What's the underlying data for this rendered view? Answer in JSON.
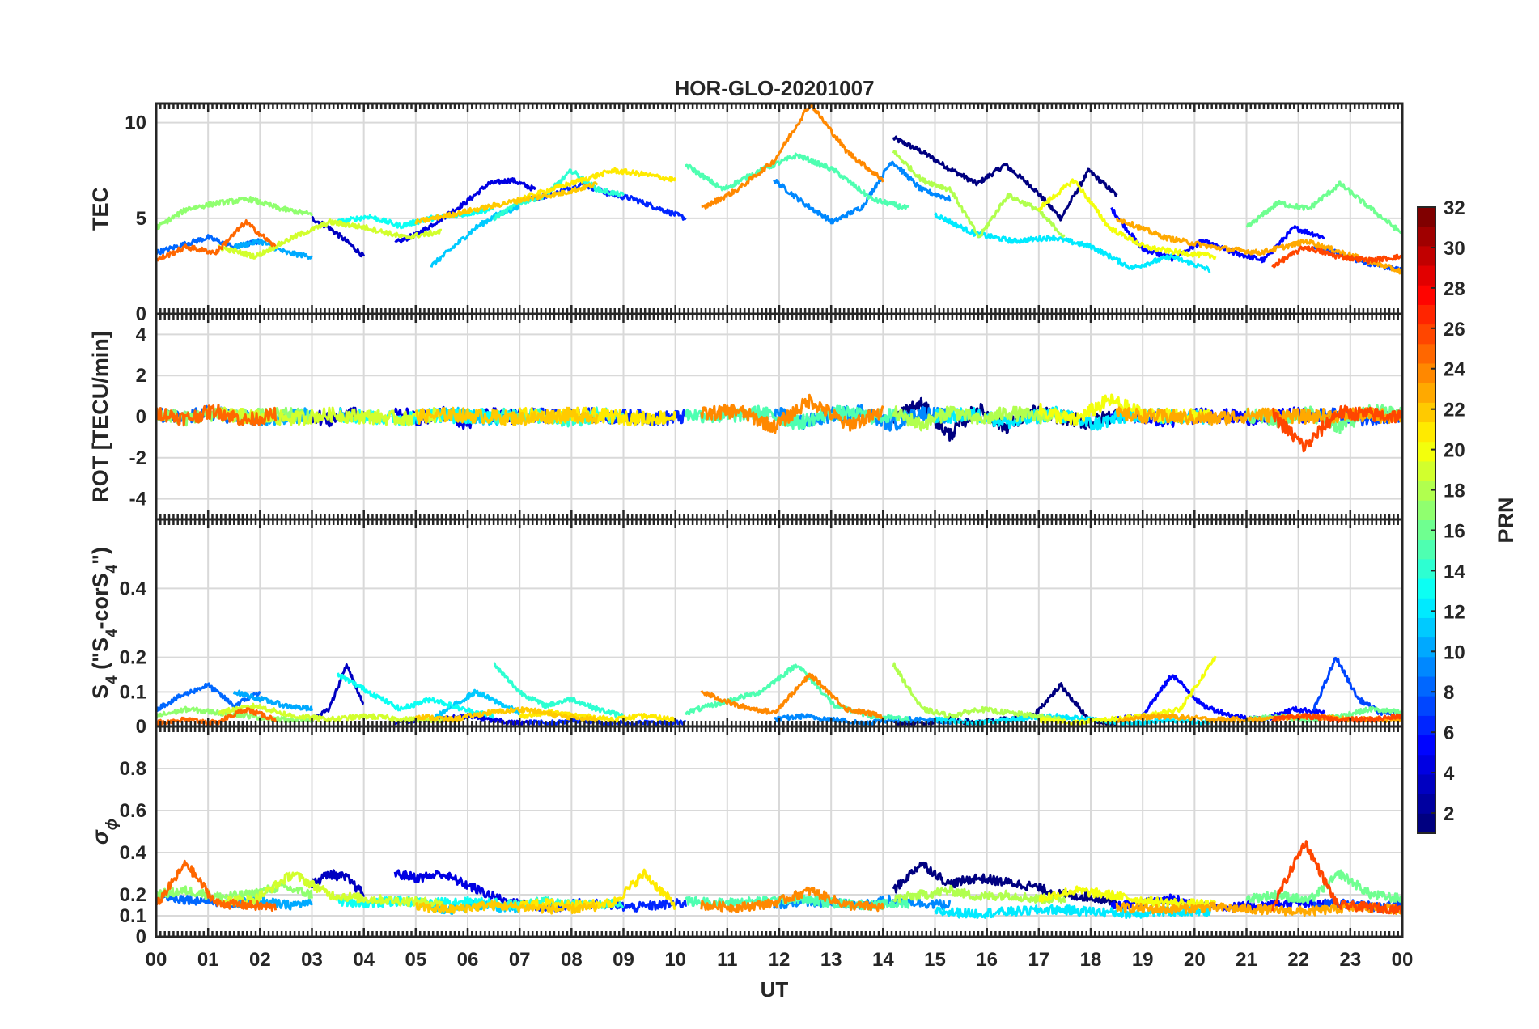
{
  "chart_data": {
    "type": "line",
    "title": "HOR-GLO-20201007",
    "xlabel": "UT",
    "x_ticks": [
      "00",
      "01",
      "02",
      "03",
      "04",
      "05",
      "06",
      "07",
      "08",
      "09",
      "10",
      "11",
      "12",
      "13",
      "14",
      "15",
      "16",
      "17",
      "18",
      "19",
      "20",
      "21",
      "22",
      "23",
      "00"
    ],
    "xlim": [
      0,
      24
    ],
    "grid": true,
    "panels": [
      {
        "id": "tec",
        "ylabel": "TEC",
        "ylim": [
          0,
          11
        ],
        "yticks": [
          0,
          5,
          10
        ],
        "baseline": 4.5
      },
      {
        "id": "rot",
        "ylabel": "ROT [TECU/min]",
        "ylim": [
          -5,
          5
        ],
        "yticks": [
          -4,
          -2,
          0,
          2,
          4
        ],
        "baseline": 0
      },
      {
        "id": "s4",
        "ylabel_parts": [
          "S",
          "4",
          " (\"S",
          "4",
          "-corS",
          "4",
          "\")"
        ],
        "ylim": [
          0,
          0.6
        ],
        "yticks": [
          0,
          0.1,
          0.2,
          0.4
        ],
        "baseline": 0.03
      },
      {
        "id": "sigma",
        "ylabel_parts": [
          "σ",
          "ϕ"
        ],
        "ylim": [
          0,
          1
        ],
        "yticks": [
          0,
          0.1,
          0.2,
          0.4,
          0.6,
          0.8
        ],
        "baseline": 0.15
      }
    ],
    "colorbar": {
      "label": "PRN",
      "range": [
        1,
        32
      ],
      "ticks": [
        "2",
        "4",
        "6",
        "8",
        "10",
        "12",
        "14",
        "16",
        "18",
        "20",
        "22",
        "24",
        "26",
        "28",
        "30",
        "32"
      ]
    },
    "series": [
      {
        "prn": 1,
        "start": 14.2,
        "end": 18.5,
        "panel_values": {
          "tec": [
            9.2,
            8.5,
            7.6,
            6.8,
            7.8,
            6.6,
            5.0,
            7.5,
            6.2
          ],
          "rot": [
            0,
            0.6,
            -0.9,
            0.4,
            -0.5,
            0.2,
            0,
            -0.3,
            0.1
          ],
          "s4": [
            0.01,
            0.01,
            0.02,
            0.01,
            0.02,
            0.03,
            0.12,
            0.02,
            0.01
          ],
          "sigma": [
            0.22,
            0.35,
            0.25,
            0.28,
            0.26,
            0.24,
            0.2,
            0.19,
            0.17
          ]
        }
      },
      {
        "prn": 3,
        "start": 3.0,
        "end": 4.0,
        "panel_values": {
          "tec": [
            5.0,
            4.5,
            3.8,
            3.0
          ],
          "rot": [
            0.1,
            -0.2,
            0.2,
            0
          ],
          "s4": [
            0.02,
            0.05,
            0.18,
            0.06
          ],
          "sigma": [
            0.25,
            0.3,
            0.28,
            0.2
          ]
        }
      },
      {
        "prn": 4,
        "start": 4.6,
        "end": 7.3,
        "panel_values": {
          "tec": [
            3.7,
            4.2,
            5.0,
            5.8,
            6.8,
            7.0,
            6.5
          ],
          "rot": [
            0.2,
            -0.1,
            0.2,
            -0.3,
            0.1,
            0,
            0.1
          ],
          "s4": [
            0.01,
            0.02,
            0.02,
            0.03,
            0.02,
            0.01,
            0.01
          ],
          "sigma": [
            0.3,
            0.28,
            0.3,
            0.25,
            0.2,
            0.16,
            0.15
          ]
        }
      },
      {
        "prn": 5,
        "start": 18.4,
        "end": 22.5,
        "panel_values": {
          "tec": [
            5.5,
            3.4,
            2.9,
            3.8,
            3.2,
            2.8,
            4.5,
            4.0
          ],
          "rot": [
            0.1,
            0,
            -0.2,
            0.1,
            0,
            -0.1,
            0.1,
            0
          ],
          "s4": [
            0.02,
            0.03,
            0.15,
            0.06,
            0.03,
            0.02,
            0.05,
            0.04
          ],
          "sigma": [
            0.15,
            0.16,
            0.18,
            0.15,
            0.14,
            0.15,
            0.16,
            0.15
          ]
        }
      },
      {
        "prn": 6,
        "start": 7.2,
        "end": 10.2,
        "panel_values": {
          "tec": [
            6.0,
            6.3,
            6.8,
            6.3,
            6.0,
            5.5,
            5.0
          ],
          "rot": [
            0.1,
            0,
            0.1,
            0,
            0,
            -0.1,
            0
          ],
          "s4": [
            0.01,
            0.01,
            0.02,
            0.01,
            0.01,
            0.01,
            0.01
          ],
          "sigma": [
            0.15,
            0.14,
            0.16,
            0.15,
            0.14,
            0.15,
            0.16
          ]
        }
      },
      {
        "prn": 7,
        "start": 22.3,
        "end": 24.0,
        "panel_values": {
          "tec": [
            3.5,
            3.2,
            2.8,
            2.5,
            2.3
          ],
          "rot": [
            0,
            0.1,
            -0.1,
            0,
            0
          ],
          "s4": [
            0.05,
            0.2,
            0.08,
            0.04,
            0.03
          ],
          "sigma": [
            0.15,
            0.16,
            0.15,
            0.14,
            0.15
          ]
        }
      },
      {
        "prn": 8,
        "start": 0.0,
        "end": 2.0,
        "panel_values": {
          "tec": [
            3.2,
            3.6,
            4.0,
            3.5,
            3.8
          ],
          "rot": [
            0.1,
            -0.1,
            0.2,
            0,
            -0.1
          ],
          "s4": [
            0.05,
            0.09,
            0.12,
            0.06,
            0.1
          ],
          "sigma": [
            0.2,
            0.18,
            0.17,
            0.16,
            0.17
          ]
        }
      },
      {
        "prn": 9,
        "start": 11.9,
        "end": 15.3,
        "panel_values": {
          "tec": [
            7.0,
            5.8,
            4.8,
            5.6,
            8.0,
            6.5,
            6.0
          ],
          "rot": [
            0.2,
            -0.3,
            0.1,
            0.3,
            -0.4,
            0.2,
            0
          ],
          "s4": [
            0.02,
            0.03,
            0.02,
            0.01,
            0.02,
            0.02,
            0.01
          ],
          "sigma": [
            0.15,
            0.17,
            0.16,
            0.15,
            0.18,
            0.16,
            0.15
          ]
        }
      },
      {
        "prn": 10,
        "start": 1.5,
        "end": 3.0,
        "panel_values": {
          "tec": [
            3.5,
            3.8,
            3.2,
            3.0
          ],
          "rot": [
            0.1,
            -0.1,
            0,
            0.1
          ],
          "s4": [
            0.1,
            0.08,
            0.06,
            0.05
          ],
          "sigma": [
            0.16,
            0.17,
            0.15,
            0.16
          ]
        }
      },
      {
        "prn": 11,
        "start": 5.3,
        "end": 7.0,
        "panel_values": {
          "tec": [
            2.5,
            3.5,
            4.5,
            5.2,
            5.6
          ],
          "rot": [
            0,
            0.1,
            0,
            -0.1,
            0
          ],
          "s4": [
            0.02,
            0.06,
            0.1,
            0.07,
            0.04
          ],
          "sigma": [
            0.14,
            0.13,
            0.15,
            0.14,
            0.13
          ]
        }
      },
      {
        "prn": 12,
        "start": 15.0,
        "end": 20.3,
        "panel_values": {
          "tec": [
            5.2,
            4.2,
            3.8,
            4.0,
            3.5,
            2.4,
            3.0,
            2.3
          ],
          "rot": [
            0,
            0.1,
            -0.3,
            0.2,
            -0.4,
            0.1,
            0,
            0
          ],
          "s4": [
            0.02,
            0.01,
            0.02,
            0.03,
            0.02,
            0.01,
            0.02,
            0.01
          ],
          "sigma": [
            0.12,
            0.11,
            0.12,
            0.13,
            0.12,
            0.11,
            0.12,
            0.12
          ]
        }
      },
      {
        "prn": 13,
        "start": 3.5,
        "end": 6.5,
        "panel_values": {
          "tec": [
            4.8,
            5.1,
            4.6,
            5.0,
            5.2,
            5.5
          ],
          "rot": [
            0.1,
            0,
            -0.1,
            0.1,
            0,
            0.1
          ],
          "s4": [
            0.15,
            0.1,
            0.05,
            0.08,
            0.05,
            0.03
          ],
          "sigma": [
            0.17,
            0.16,
            0.17,
            0.16,
            0.17,
            0.16
          ]
        }
      },
      {
        "prn": 14,
        "start": 6.5,
        "end": 9.0,
        "panel_values": {
          "tec": [
            5.0,
            5.8,
            6.2,
            7.5,
            6.5,
            6.2
          ],
          "rot": [
            0,
            0.1,
            0,
            -0.2,
            0.1,
            0
          ],
          "s4": [
            0.18,
            0.1,
            0.06,
            0.08,
            0.05,
            0.03
          ],
          "sigma": [
            0.16,
            0.15,
            0.17,
            0.16,
            0.15,
            0.16
          ]
        }
      },
      {
        "prn": 15,
        "start": 10.2,
        "end": 14.5,
        "panel_values": {
          "tec": [
            7.8,
            6.5,
            7.5,
            8.3,
            7.5,
            6.0,
            5.5
          ],
          "rot": [
            0.1,
            0,
            0.2,
            -0.3,
            0.2,
            0,
            0.1
          ],
          "s4": [
            0.04,
            0.07,
            0.1,
            0.18,
            0.06,
            0.03,
            0.02
          ],
          "sigma": [
            0.17,
            0.16,
            0.17,
            0.18,
            0.16,
            0.15,
            0.16
          ]
        }
      },
      {
        "prn": 16,
        "start": 21.0,
        "end": 24.0,
        "panel_values": {
          "tec": [
            4.5,
            5.8,
            5.5,
            6.8,
            5.5,
            4.2
          ],
          "rot": [
            0.1,
            -0.2,
            0.2,
            -0.5,
            0.3,
            0.1
          ],
          "s4": [
            0.02,
            0.03,
            0.02,
            0.03,
            0.05,
            0.04
          ],
          "sigma": [
            0.18,
            0.2,
            0.17,
            0.3,
            0.2,
            0.18
          ]
        }
      },
      {
        "prn": 17,
        "start": 0.0,
        "end": 3.0,
        "panel_values": {
          "tec": [
            4.5,
            5.5,
            5.8,
            6.0,
            5.5,
            5.2
          ],
          "rot": [
            0.2,
            -0.1,
            0.2,
            0,
            0.1,
            0
          ],
          "s4": [
            0.03,
            0.05,
            0.04,
            0.03,
            0.02,
            0.02
          ],
          "sigma": [
            0.2,
            0.22,
            0.19,
            0.2,
            0.24,
            0.2
          ]
        }
      },
      {
        "prn": 18,
        "start": 14.2,
        "end": 17.5,
        "panel_values": {
          "tec": [
            8.5,
            7.0,
            6.5,
            4.0,
            6.2,
            5.5,
            4.0
          ],
          "rot": [
            0.2,
            -0.4,
            0.3,
            -0.2,
            0.2,
            0,
            0.1
          ],
          "s4": [
            0.18,
            0.05,
            0.03,
            0.05,
            0.04,
            0.03,
            0.02
          ],
          "sigma": [
            0.18,
            0.2,
            0.22,
            0.19,
            0.2,
            0.18,
            0.18
          ]
        }
      },
      {
        "prn": 19,
        "start": 1.2,
        "end": 5.5,
        "panel_values": {
          "tec": [
            3.5,
            3.0,
            4.0,
            4.8,
            4.5,
            4.0,
            4.3
          ],
          "rot": [
            0.1,
            0,
            -0.1,
            0.1,
            0,
            -0.1,
            0.1
          ],
          "s4": [
            0.04,
            0.06,
            0.03,
            0.02,
            0.03,
            0.02,
            0.02
          ],
          "sigma": [
            0.17,
            0.18,
            0.3,
            0.2,
            0.18,
            0.17,
            0.16
          ]
        }
      },
      {
        "prn": 20,
        "start": 17.0,
        "end": 20.4,
        "panel_values": {
          "tec": [
            5.5,
            7.0,
            4.5,
            3.5,
            3.2,
            3.0
          ],
          "rot": [
            0.3,
            -0.2,
            0.8,
            0.1,
            0,
            0.1
          ],
          "s4": [
            0.02,
            0.01,
            0.02,
            0.03,
            0.05,
            0.2
          ],
          "sigma": [
            0.18,
            0.22,
            0.2,
            0.17,
            0.16,
            0.15
          ]
        }
      },
      {
        "prn": 21,
        "start": 7.0,
        "end": 10.0,
        "panel_values": {
          "tec": [
            6.0,
            6.5,
            7.0,
            7.5,
            7.3,
            7.0
          ],
          "rot": [
            0.1,
            0,
            0.1,
            0,
            -0.1,
            0
          ],
          "s4": [
            0.03,
            0.04,
            0.03,
            0.02,
            0.03,
            0.02
          ],
          "sigma": [
            0.15,
            0.16,
            0.15,
            0.16,
            0.3,
            0.15
          ]
        }
      },
      {
        "prn": 22,
        "start": 5.0,
        "end": 8.5,
        "panel_values": {
          "tec": [
            4.8,
            5.2,
            5.6,
            6.0,
            6.3,
            6.8
          ],
          "rot": [
            0,
            0.1,
            0,
            -0.1,
            0.1,
            0
          ],
          "s4": [
            0.03,
            0.02,
            0.04,
            0.05,
            0.03,
            0.02
          ],
          "sigma": [
            0.14,
            0.13,
            0.15,
            0.14,
            0.13,
            0.14
          ]
        }
      },
      {
        "prn": 23,
        "start": 18.5,
        "end": 24.0,
        "panel_values": {
          "tec": [
            5.0,
            4.0,
            3.5,
            3.2,
            3.8,
            3.0,
            2.2
          ],
          "rot": [
            0.1,
            0,
            -0.1,
            0.1,
            0,
            0.1,
            0
          ],
          "s4": [
            0.02,
            0.03,
            0.02,
            0.02,
            0.03,
            0.02,
            0.02
          ],
          "sigma": [
            0.14,
            0.13,
            0.14,
            0.13,
            0.12,
            0.14,
            0.13
          ]
        }
      },
      {
        "prn": 24,
        "start": 10.5,
        "end": 14.0,
        "panel_values": {
          "tec": [
            5.5,
            6.5,
            8.0,
            11.0,
            8.5,
            7.0
          ],
          "rot": [
            0.1,
            0.3,
            -0.5,
            0.8,
            -0.4,
            0.2
          ],
          "s4": [
            0.1,
            0.06,
            0.04,
            0.15,
            0.05,
            0.03
          ],
          "sigma": [
            0.15,
            0.14,
            0.16,
            0.22,
            0.15,
            0.14
          ]
        }
      },
      {
        "prn": 25,
        "start": 0.0,
        "end": 2.3,
        "panel_values": {
          "tec": [
            2.8,
            3.5,
            3.2,
            4.8,
            3.5
          ],
          "rot": [
            0.2,
            -0.1,
            0.3,
            -0.2,
            0.1
          ],
          "s4": [
            0.01,
            0.02,
            0.01,
            0.05,
            0.02
          ],
          "sigma": [
            0.15,
            0.35,
            0.16,
            0.15,
            0.14
          ]
        }
      },
      {
        "prn": 26,
        "start": 21.5,
        "end": 24.0,
        "panel_values": {
          "tec": [
            2.5,
            3.5,
            3.0,
            2.8,
            3.0
          ],
          "rot": [
            0.1,
            -1.5,
            0.2,
            0.1,
            0
          ],
          "s4": [
            0.02,
            0.03,
            0.02,
            0.02,
            0.03
          ],
          "sigma": [
            0.14,
            0.45,
            0.15,
            0.14,
            0.13
          ]
        }
      }
    ]
  }
}
